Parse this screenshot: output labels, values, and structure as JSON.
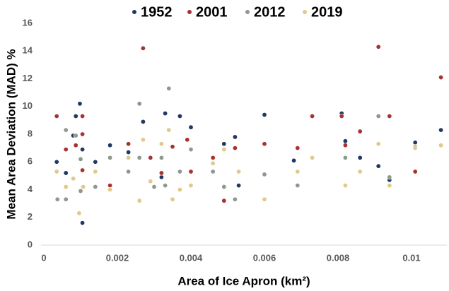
{
  "chart_data": {
    "type": "scatter",
    "x_label": "Area of Ice Apron (km²)",
    "y_label": "Mean Area Deviation (MAD) %",
    "xlim": [
      0,
      0.011
    ],
    "ylim": [
      0,
      16
    ],
    "xticks": [
      0,
      0.002,
      0.004,
      0.006,
      0.008,
      0.01
    ],
    "yticks": [
      0,
      2,
      4,
      6,
      8,
      10,
      12,
      14,
      16
    ],
    "grid": false,
    "legend": "top",
    "series": [
      {
        "name": "1952",
        "color": "#1f3864",
        "x": [
          0.00035,
          0.0006,
          0.0008,
          0.00087,
          0.00098,
          0.00105,
          0.00105,
          0.0014,
          0.0018,
          0.0023,
          0.0027,
          0.0033,
          0.0037,
          0.004,
          0.0032,
          0.0049,
          0.0052,
          0.0053,
          0.006,
          0.0081,
          0.0082,
          0.0091,
          0.0094,
          0.0101,
          0.0108,
          0.0068,
          0.0086
        ],
        "y": [
          6.0,
          5.2,
          7.9,
          9.3,
          10.2,
          6.9,
          1.6,
          6.0,
          7.2,
          6.7,
          8.9,
          9.5,
          9.3,
          8.5,
          4.9,
          7.3,
          7.8,
          4.3,
          9.4,
          9.5,
          7.5,
          5.7,
          4.7,
          7.4,
          8.3,
          6.1,
          6.3
        ]
      },
      {
        "name": "2001",
        "color": "#a83232",
        "x": [
          0.00035,
          0.0006,
          0.00087,
          0.00105,
          0.00105,
          0.00105,
          0.0018,
          0.0027,
          0.0023,
          0.0029,
          0.0032,
          0.0039,
          0.004,
          0.0046,
          0.0049,
          0.006,
          0.0069,
          0.0073,
          0.0081,
          0.0082,
          0.0086,
          0.0091,
          0.0094,
          0.0101,
          0.0108,
          0.0035,
          0.0052
        ],
        "y": [
          9.3,
          6.9,
          7.2,
          9.3,
          8.0,
          5.4,
          4.3,
          14.2,
          7.3,
          6.3,
          5.2,
          7.6,
          5.3,
          6.3,
          3.2,
          7.3,
          7.0,
          9.3,
          9.3,
          7.2,
          8.2,
          14.3,
          9.3,
          5.3,
          12.1,
          7.1,
          7.0
        ]
      },
      {
        "name": "2012",
        "color": "#8c9a8c",
        "x": [
          0.00037,
          0.0006,
          0.0006,
          0.00087,
          0.001,
          0.001,
          0.0014,
          0.0018,
          0.0023,
          0.0026,
          0.0026,
          0.003,
          0.0032,
          0.0034,
          0.0033,
          0.0037,
          0.004,
          0.0046,
          0.0049,
          0.0052,
          0.006,
          0.0069,
          0.0082,
          0.0091,
          0.0094,
          0.0101,
          0.0108
        ],
        "y": [
          3.3,
          8.3,
          3.3,
          7.9,
          6.2,
          3.9,
          4.2,
          6.3,
          5.3,
          10.2,
          6.3,
          4.2,
          6.3,
          11.3,
          4.3,
          5.3,
          6.9,
          5.3,
          4.2,
          3.3,
          5.1,
          4.3,
          6.3,
          9.3,
          4.9,
          7.1,
          7.2
        ]
      },
      {
        "name": "2019",
        "color": "#e2c88a",
        "x": [
          0.00035,
          0.0006,
          0.0008,
          0.00096,
          0.00107,
          0.0014,
          0.0018,
          0.0023,
          0.0026,
          0.0027,
          0.0029,
          0.0032,
          0.0034,
          0.0035,
          0.0037,
          0.004,
          0.0046,
          0.0049,
          0.0053,
          0.006,
          0.0069,
          0.0073,
          0.0082,
          0.0086,
          0.0091,
          0.0094,
          0.0101,
          0.0108
        ],
        "y": [
          5.3,
          4.2,
          4.8,
          2.3,
          4.2,
          5.3,
          4.0,
          6.3,
          3.2,
          7.6,
          4.6,
          7.3,
          8.3,
          3.3,
          4.0,
          4.3,
          5.9,
          6.9,
          5.3,
          3.3,
          5.3,
          6.3,
          4.3,
          5.3,
          7.3,
          4.3,
          7.0,
          7.2
        ]
      }
    ]
  }
}
